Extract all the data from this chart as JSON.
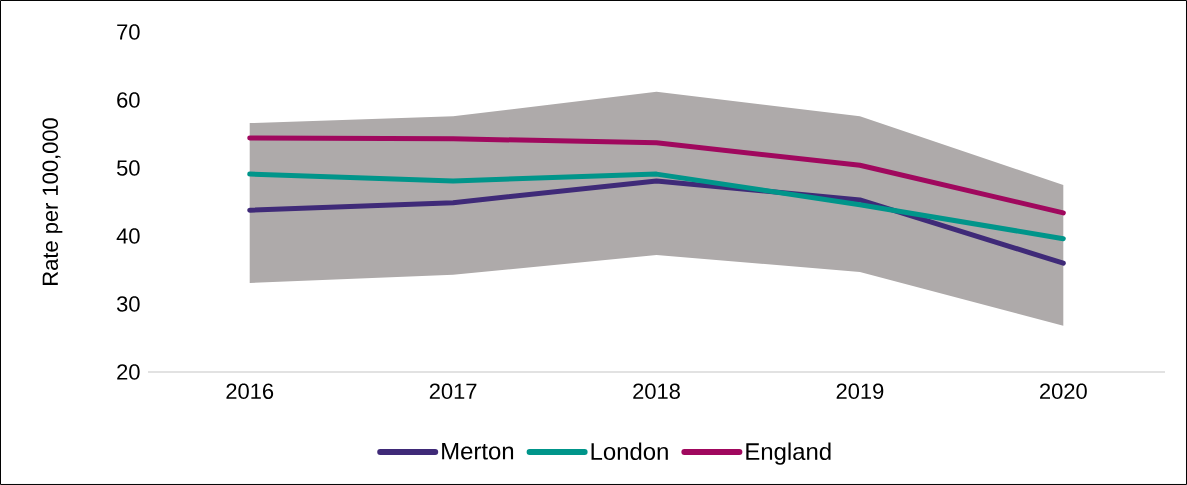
{
  "chart_data": {
    "type": "line",
    "ylabel": "Rate per 100,000",
    "categories": [
      "2016",
      "2017",
      "2018",
      "2019",
      "2020"
    ],
    "series": [
      {
        "name": "Merton",
        "color": "#3f2a78",
        "values": [
          43.8,
          44.9,
          48.1,
          45.3,
          36.0
        ],
        "lower": [
          33.1,
          34.3,
          37.2,
          34.7,
          26.8
        ],
        "upper": [
          56.6,
          57.6,
          61.2,
          57.6,
          47.5
        ]
      },
      {
        "name": "London",
        "color": "#00958a",
        "values": [
          49.1,
          48.1,
          49.1,
          44.6,
          39.6
        ]
      },
      {
        "name": "England",
        "color": "#a0085e",
        "values": [
          54.4,
          54.3,
          53.7,
          50.4,
          43.4
        ]
      }
    ],
    "ylim": [
      20,
      70
    ],
    "yticks": [
      20,
      30,
      40,
      50,
      60,
      70
    ],
    "legend": "bottom",
    "grid": false,
    "marker": "none",
    "line_style": "solid"
  }
}
